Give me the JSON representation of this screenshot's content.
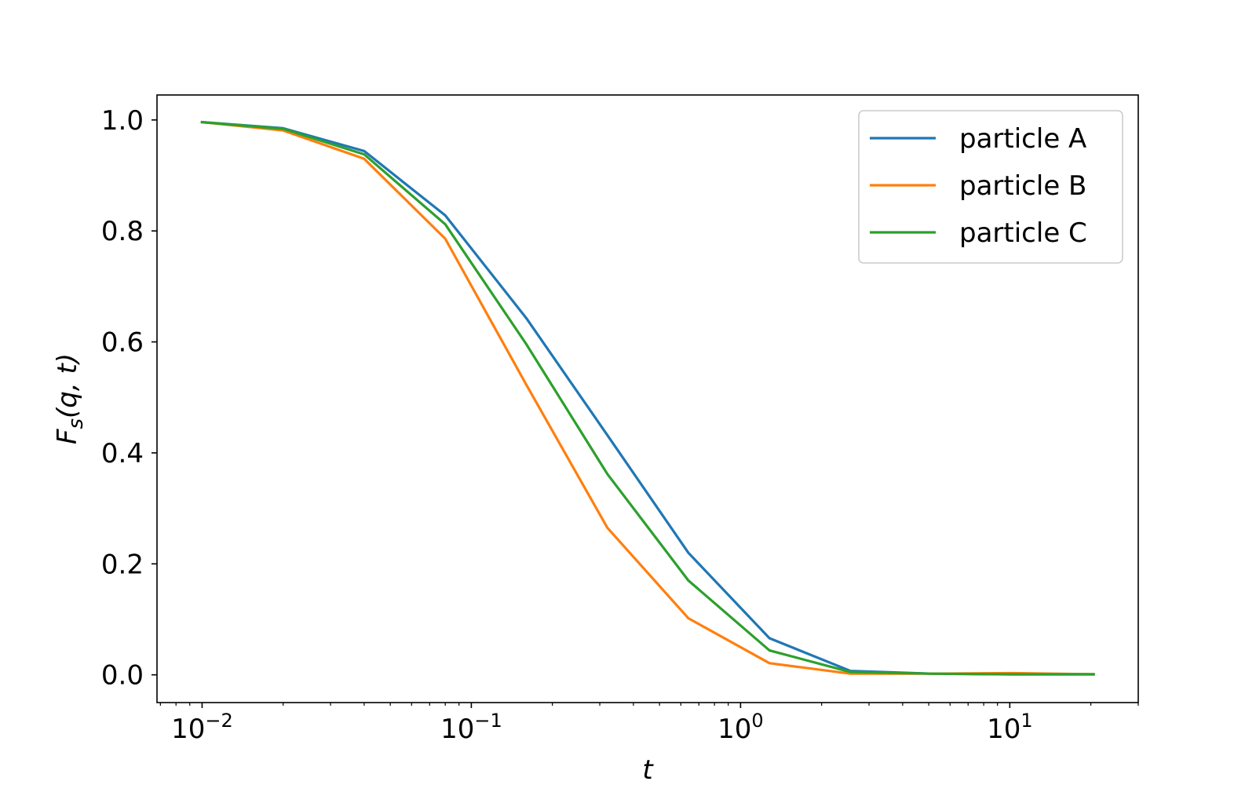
{
  "chart_data": {
    "type": "line",
    "xscale": "log",
    "xlabel": "t",
    "ylabel": "F_s(q, t)",
    "xlim": [
      0.0068,
      30
    ],
    "ylim": [
      -0.05,
      1.045
    ],
    "grid": false,
    "legend": {
      "position": "top-right"
    },
    "x_ticks": [
      {
        "value": 0.01,
        "base": "10",
        "exp": "−2"
      },
      {
        "value": 0.1,
        "base": "10",
        "exp": "−1"
      },
      {
        "value": 1,
        "base": "10",
        "exp": "0"
      },
      {
        "value": 10,
        "base": "10",
        "exp": "1"
      }
    ],
    "y_ticks": [
      {
        "value": 0.0,
        "label": "0.0"
      },
      {
        "value": 0.2,
        "label": "0.2"
      },
      {
        "value": 0.4,
        "label": "0.4"
      },
      {
        "value": 0.6,
        "label": "0.6"
      },
      {
        "value": 0.8,
        "label": "0.8"
      },
      {
        "value": 1.0,
        "label": "1.0"
      }
    ],
    "x": [
      0.01,
      0.02,
      0.04,
      0.08,
      0.16,
      0.32,
      0.64,
      1.28,
      2.56,
      5.12,
      10.24,
      20.48
    ],
    "series": [
      {
        "name": "particle A",
        "color": "#1f77b4",
        "values": [
          0.996,
          0.985,
          0.944,
          0.828,
          0.643,
          0.432,
          0.22,
          0.066,
          0.007,
          0.002,
          0.001,
          0.001
        ]
      },
      {
        "name": "particle B",
        "color": "#ff7f0e",
        "values": [
          0.996,
          0.981,
          0.93,
          0.786,
          0.523,
          0.265,
          0.102,
          0.021,
          0.002,
          0.002,
          0.003,
          0.001
        ]
      },
      {
        "name": "particle C",
        "color": "#2ca02c",
        "values": [
          0.996,
          0.984,
          0.938,
          0.812,
          0.596,
          0.362,
          0.17,
          0.044,
          0.005,
          0.002,
          0.001,
          0.001
        ]
      }
    ]
  }
}
